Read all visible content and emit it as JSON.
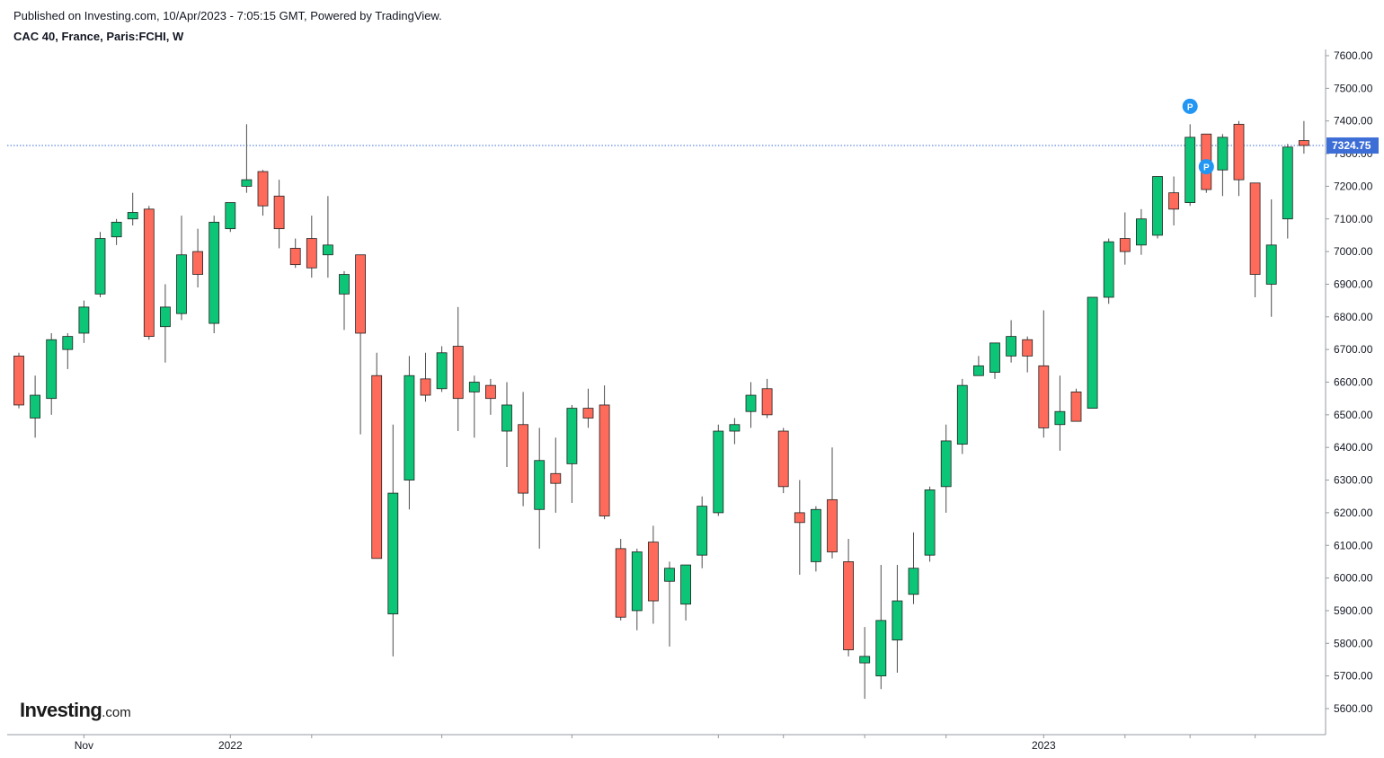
{
  "header": {
    "published": "Published on Investing.com, 10/Apr/2023 - 7:05:15 GMT, Powered by TradingView.",
    "symbol": "CAC 40, France, Paris:FCHI, W"
  },
  "logo": {
    "brand": "Investing",
    "suffix": ".com"
  },
  "colors": {
    "up": "#0cc577",
    "down": "#ff6b5b",
    "wick": "#4d4d4d",
    "last_price": "#3d6ed6",
    "axis": "#9598a1",
    "marker": "#2196f3"
  },
  "chart_data": {
    "type": "candlestick",
    "title": "CAC 40, France, Paris:FCHI, W",
    "xlabel": "",
    "ylabel": "",
    "ylim": [
      5520,
      7620
    ],
    "grid": false,
    "y_ticks": [
      "7600.00",
      "7500.00",
      "7400.00",
      "7300.00",
      "7200.00",
      "7100.00",
      "7000.00",
      "6900.00",
      "6800.00",
      "6700.00",
      "6600.00",
      "6500.00",
      "6400.00",
      "6300.00",
      "6200.00",
      "6100.00",
      "6000.00",
      "5900.00",
      "5800.00",
      "5700.00",
      "5600.00"
    ],
    "x_ticks": [
      {
        "label": "Nov",
        "index": 4
      },
      {
        "label": "2022",
        "index": 13
      },
      {
        "label": "2023",
        "index": 63
      }
    ],
    "x_minor_ticks": [
      18,
      26,
      34,
      43,
      47,
      52,
      57,
      68,
      72,
      76
    ],
    "last_price": {
      "value": 7324.75,
      "label": "7324.75"
    },
    "markers": [
      {
        "label": "P",
        "index": 72,
        "position": "above"
      },
      {
        "label": "P",
        "index": 73,
        "position": "below"
      }
    ],
    "candles": [
      {
        "o": 6680,
        "h": 6690,
        "l": 6520,
        "c": 6530
      },
      {
        "o": 6490,
        "h": 6620,
        "l": 6430,
        "c": 6560
      },
      {
        "o": 6550,
        "h": 6750,
        "l": 6500,
        "c": 6730
      },
      {
        "o": 6700,
        "h": 6750,
        "l": 6640,
        "c": 6740
      },
      {
        "o": 6750,
        "h": 6850,
        "l": 6720,
        "c": 6830
      },
      {
        "o": 6870,
        "h": 7060,
        "l": 6860,
        "c": 7040
      },
      {
        "o": 7045,
        "h": 7100,
        "l": 7020,
        "c": 7090
      },
      {
        "o": 7100,
        "h": 7180,
        "l": 7080,
        "c": 7120
      },
      {
        "o": 7130,
        "h": 7140,
        "l": 6730,
        "c": 6740
      },
      {
        "o": 6770,
        "h": 6900,
        "l": 6660,
        "c": 6830
      },
      {
        "o": 6810,
        "h": 7110,
        "l": 6790,
        "c": 6990
      },
      {
        "o": 7000,
        "h": 7070,
        "l": 6890,
        "c": 6930
      },
      {
        "o": 6780,
        "h": 7110,
        "l": 6750,
        "c": 7090
      },
      {
        "o": 7070,
        "h": 7150,
        "l": 7060,
        "c": 7150
      },
      {
        "o": 7200,
        "h": 7390,
        "l": 7180,
        "c": 7220
      },
      {
        "o": 7245,
        "h": 7250,
        "l": 7110,
        "c": 7140
      },
      {
        "o": 7170,
        "h": 7220,
        "l": 7010,
        "c": 7070
      },
      {
        "o": 7010,
        "h": 7040,
        "l": 6950,
        "c": 6960
      },
      {
        "o": 7040,
        "h": 7110,
        "l": 6920,
        "c": 6950
      },
      {
        "o": 6990,
        "h": 7170,
        "l": 6920,
        "c": 7020
      },
      {
        "o": 6870,
        "h": 6940,
        "l": 6760,
        "c": 6930
      },
      {
        "o": 6990,
        "h": 6990,
        "l": 6440,
        "c": 6750
      },
      {
        "o": 6620,
        "h": 6690,
        "l": 6060,
        "c": 6060
      },
      {
        "o": 5890,
        "h": 6470,
        "l": 5760,
        "c": 6260
      },
      {
        "o": 6300,
        "h": 6680,
        "l": 6210,
        "c": 6620
      },
      {
        "o": 6610,
        "h": 6690,
        "l": 6540,
        "c": 6560
      },
      {
        "o": 6580,
        "h": 6710,
        "l": 6570,
        "c": 6690
      },
      {
        "o": 6710,
        "h": 6830,
        "l": 6450,
        "c": 6550
      },
      {
        "o": 6570,
        "h": 6620,
        "l": 6430,
        "c": 6600
      },
      {
        "o": 6590,
        "h": 6610,
        "l": 6500,
        "c": 6550
      },
      {
        "o": 6450,
        "h": 6600,
        "l": 6340,
        "c": 6530
      },
      {
        "o": 6470,
        "h": 6570,
        "l": 6220,
        "c": 6260
      },
      {
        "o": 6210,
        "h": 6460,
        "l": 6090,
        "c": 6360
      },
      {
        "o": 6320,
        "h": 6430,
        "l": 6200,
        "c": 6290
      },
      {
        "o": 6350,
        "h": 6530,
        "l": 6230,
        "c": 6520
      },
      {
        "o": 6520,
        "h": 6580,
        "l": 6460,
        "c": 6490
      },
      {
        "o": 6530,
        "h": 6590,
        "l": 6180,
        "c": 6190
      },
      {
        "o": 6090,
        "h": 6120,
        "l": 5870,
        "c": 5880
      },
      {
        "o": 5900,
        "h": 6090,
        "l": 5840,
        "c": 6080
      },
      {
        "o": 6110,
        "h": 6160,
        "l": 5860,
        "c": 5930
      },
      {
        "o": 5990,
        "h": 6050,
        "l": 5790,
        "c": 6030
      },
      {
        "o": 5920,
        "h": 6040,
        "l": 5870,
        "c": 6040
      },
      {
        "o": 6070,
        "h": 6250,
        "l": 6030,
        "c": 6220
      },
      {
        "o": 6200,
        "h": 6470,
        "l": 6190,
        "c": 6450
      },
      {
        "o": 6450,
        "h": 6490,
        "l": 6410,
        "c": 6470
      },
      {
        "o": 6510,
        "h": 6600,
        "l": 6460,
        "c": 6560
      },
      {
        "o": 6580,
        "h": 6610,
        "l": 6490,
        "c": 6500
      },
      {
        "o": 6450,
        "h": 6460,
        "l": 6260,
        "c": 6280
      },
      {
        "o": 6200,
        "h": 6300,
        "l": 6010,
        "c": 6170
      },
      {
        "o": 6050,
        "h": 6220,
        "l": 6020,
        "c": 6210
      },
      {
        "o": 6240,
        "h": 6400,
        "l": 6060,
        "c": 6080
      },
      {
        "o": 6050,
        "h": 6120,
        "l": 5760,
        "c": 5780
      },
      {
        "o": 5740,
        "h": 5850,
        "l": 5630,
        "c": 5760
      },
      {
        "o": 5700,
        "h": 6040,
        "l": 5660,
        "c": 5870
      },
      {
        "o": 5810,
        "h": 6040,
        "l": 5710,
        "c": 5930
      },
      {
        "o": 5950,
        "h": 6140,
        "l": 5920,
        "c": 6030
      },
      {
        "o": 6070,
        "h": 6280,
        "l": 6050,
        "c": 6270
      },
      {
        "o": 6280,
        "h": 6470,
        "l": 6200,
        "c": 6420
      },
      {
        "o": 6410,
        "h": 6610,
        "l": 6380,
        "c": 6590
      },
      {
        "o": 6620,
        "h": 6680,
        "l": 6620,
        "c": 6650
      },
      {
        "o": 6630,
        "h": 6720,
        "l": 6610,
        "c": 6720
      },
      {
        "o": 6680,
        "h": 6790,
        "l": 6660,
        "c": 6740
      },
      {
        "o": 6730,
        "h": 6740,
        "l": 6630,
        "c": 6680
      },
      {
        "o": 6650,
        "h": 6820,
        "l": 6430,
        "c": 6460
      },
      {
        "o": 6470,
        "h": 6620,
        "l": 6390,
        "c": 6510
      },
      {
        "o": 6570,
        "h": 6580,
        "l": 6480,
        "c": 6480
      },
      {
        "o": 6520,
        "h": 6860,
        "l": 6520,
        "c": 6860
      },
      {
        "o": 6860,
        "h": 7040,
        "l": 6840,
        "c": 7030
      },
      {
        "o": 7040,
        "h": 7120,
        "l": 6960,
        "c": 7000
      },
      {
        "o": 7020,
        "h": 7130,
        "l": 6990,
        "c": 7100
      },
      {
        "o": 7050,
        "h": 7230,
        "l": 7040,
        "c": 7230
      },
      {
        "o": 7180,
        "h": 7230,
        "l": 7080,
        "c": 7130
      },
      {
        "o": 7150,
        "h": 7390,
        "l": 7140,
        "c": 7350
      },
      {
        "o": 7360,
        "h": 7360,
        "l": 7180,
        "c": 7190
      },
      {
        "o": 7250,
        "h": 7360,
        "l": 7170,
        "c": 7350
      },
      {
        "o": 7390,
        "h": 7400,
        "l": 7170,
        "c": 7220
      },
      {
        "o": 7210,
        "h": 7210,
        "l": 6860,
        "c": 6930
      },
      {
        "o": 6900,
        "h": 7160,
        "l": 6800,
        "c": 7020
      },
      {
        "o": 7100,
        "h": 7330,
        "l": 7040,
        "c": 7320
      },
      {
        "o": 7340,
        "h": 7400,
        "l": 7300,
        "c": 7325
      }
    ]
  }
}
